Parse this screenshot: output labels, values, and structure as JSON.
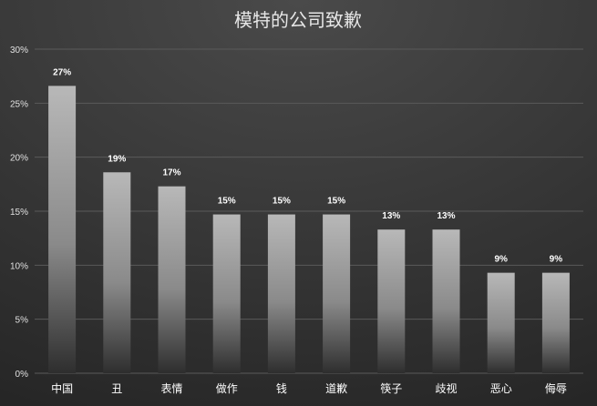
{
  "chart_data": {
    "type": "bar",
    "title": "模特的公司致歉",
    "categories": [
      "中国",
      "丑",
      "表情",
      "做作",
      "钱",
      "道歉",
      "筷子",
      "歧视",
      "恶心",
      "侮辱"
    ],
    "values": [
      26.6,
      18.6,
      17.3,
      14.7,
      14.7,
      14.7,
      13.3,
      13.3,
      9.3,
      9.3
    ],
    "data_labels": [
      "27%",
      "19%",
      "17%",
      "15%",
      "15%",
      "15%",
      "13%",
      "13%",
      "9%",
      "9%"
    ],
    "y_ticks": [
      0,
      5,
      10,
      15,
      20,
      25,
      30
    ],
    "y_tick_labels": [
      "0%",
      "5%",
      "10%",
      "15%",
      "20%",
      "25%",
      "30%"
    ],
    "ylim": [
      0,
      30
    ],
    "xlabel": "",
    "ylabel": "",
    "grid": true,
    "legend": "none",
    "colors": {
      "background_top": "#4a4a4a",
      "background_bottom": "#262626",
      "bar_top": "#b8b8b8",
      "bar_bottom": "#2e2e2e",
      "grid": "#5a5a5a",
      "axis_text": "#e0e0e0",
      "title_text": "#e6e6e6",
      "label_text": "#ffffff"
    }
  }
}
